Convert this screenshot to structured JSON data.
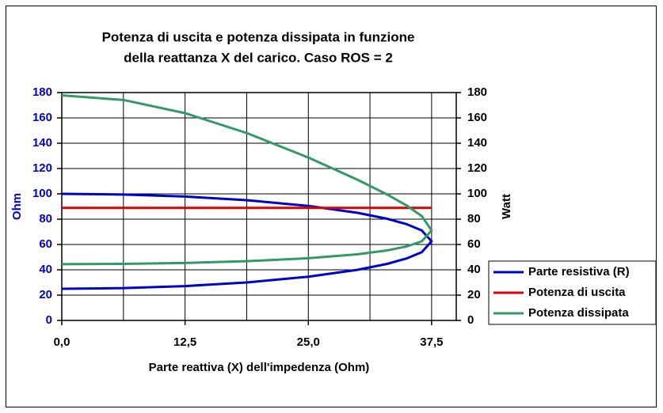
{
  "chart_data": {
    "type": "line",
    "title_lines": [
      "Potenza di uscita e potenza dissipata in funzione",
      "della reattanza X del carico. Caso ROS = 2"
    ],
    "x_label": "Parte reattiva (X) dell'impedenza (Ohm)",
    "y_label": "Ohm",
    "y2_label": "Watt",
    "xlim": [
      0,
      40
    ],
    "xticks": [
      {
        "value": 0,
        "label": "0,0"
      },
      {
        "value": 12.5,
        "label": "12,5"
      },
      {
        "value": 25,
        "label": "25,0"
      },
      {
        "value": 37.5,
        "label": "37,5"
      }
    ],
    "x_minor_grid": [
      6.25,
      18.75,
      31.25
    ],
    "ylim": [
      0,
      180
    ],
    "yticks": [
      0,
      20,
      40,
      60,
      80,
      100,
      120,
      140,
      160,
      180
    ],
    "y2lim": [
      0,
      180
    ],
    "y2ticks": [
      0,
      20,
      40,
      60,
      80,
      100,
      120,
      140,
      160,
      180
    ],
    "grid": true,
    "legend": "right",
    "series": [
      {
        "name": "Parte resistiva (R)",
        "color": "#0000cc",
        "x": [
          0,
          6.25,
          12.5,
          18.75,
          25,
          30,
          33,
          35,
          36.5,
          37.5,
          36.5,
          35,
          33,
          30,
          25,
          18.75,
          12.5,
          6.25,
          0
        ],
        "values": [
          25,
          25.52,
          27.14,
          30.02,
          34.55,
          40,
          44.69,
          49.04,
          53.9,
          62.5,
          71.1,
          75.96,
          80.31,
          85,
          90.45,
          94.98,
          97.86,
          99.48,
          100
        ]
      },
      {
        "name": "Potenza di uscita",
        "color": "#dd0000",
        "axis": "y2",
        "x": [
          0,
          37.5
        ],
        "values": [
          88.9,
          88.9
        ]
      },
      {
        "name": "Potenza dissipata",
        "color": "#339966",
        "axis": "y2",
        "x": [
          0,
          6.25,
          12.5,
          18.75,
          25,
          30,
          33,
          35,
          36.5,
          37.5,
          36.5,
          35,
          33,
          30,
          25,
          18.75,
          12.5,
          6.25,
          0
        ],
        "values": [
          177.78,
          174.16,
          163.76,
          148.05,
          128.64,
          111.11,
          99.45,
          90.63,
          82.46,
          71.11,
          62.51,
          58.51,
          55.34,
          52.29,
          49.14,
          46.79,
          45.42,
          44.68,
          44.44
        ]
      }
    ]
  }
}
